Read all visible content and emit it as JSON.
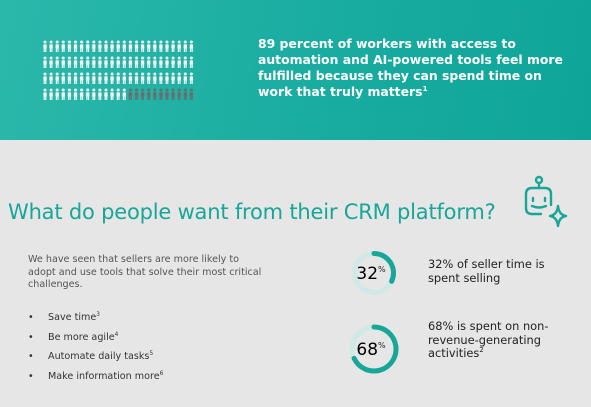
{
  "banner": {
    "text": "89 percent of workers with access to automation and AI-powered tools feel more fulfilled because they can spend time on work that truly matters",
    "sup": "1"
  },
  "title": "What do people want from their CRM platform?",
  "intro": "We have seen that sellers are more likely to adopt and use tools that solve their most critical challenges.",
  "bullets": [
    {
      "text": "Save time",
      "sup": "3"
    },
    {
      "text": "Be more agile",
      "sup": "4"
    },
    {
      "text": "Automate daily tasks",
      "sup": "5"
    },
    {
      "text": "Make information more",
      "sup": "6"
    }
  ],
  "stats": [
    {
      "value": 32,
      "unit": "%",
      "text": "32% of seller time is spent selling"
    },
    {
      "value": 68,
      "unit": "%",
      "text": "68% is spent on non-revenue-generating activities",
      "sup": "2"
    }
  ]
}
